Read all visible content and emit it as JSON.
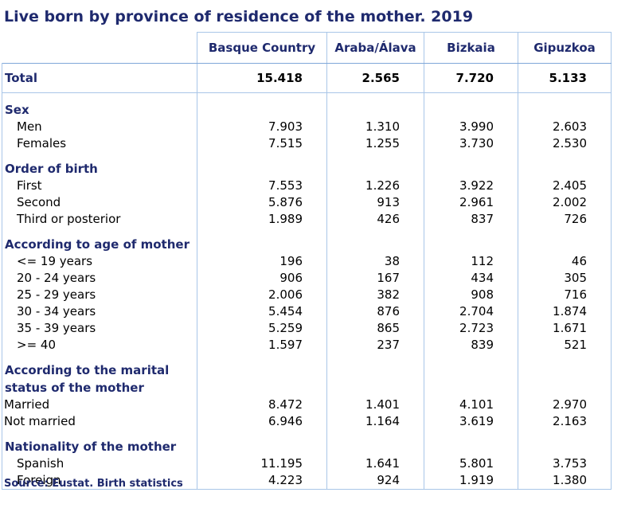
{
  "title": "Live born by province of residence of the mother. 2019",
  "columns": [
    "Basque Country",
    "Araba/Álava",
    "Bizkaia",
    "Gipuzkoa"
  ],
  "total": {
    "label": "Total",
    "values": [
      "15.418",
      "2.565",
      "7.720",
      "5.133"
    ]
  },
  "sections": [
    {
      "title": "Sex",
      "rows": [
        {
          "label": "Men",
          "values": [
            "7.903",
            "1.310",
            "3.990",
            "2.603"
          ]
        },
        {
          "label": "Females",
          "values": [
            "7.515",
            "1.255",
            "3.730",
            "2.530"
          ]
        }
      ]
    },
    {
      "title": "Order of birth",
      "rows": [
        {
          "label": "First",
          "values": [
            "7.553",
            "1.226",
            "3.922",
            "2.405"
          ]
        },
        {
          "label": "Second",
          "values": [
            "5.876",
            "913",
            "2.961",
            "2.002"
          ]
        },
        {
          "label": "Third or posterior",
          "values": [
            "1.989",
            "426",
            "837",
            "726"
          ]
        }
      ]
    },
    {
      "title": "According to age of mother",
      "rows": [
        {
          "label": "<= 19 years",
          "values": [
            "196",
            "38",
            "112",
            "46"
          ]
        },
        {
          "label": "20 - 24 years",
          "values": [
            "906",
            "167",
            "434",
            "305"
          ]
        },
        {
          "label": "25 - 29 years",
          "values": [
            "2.006",
            "382",
            "908",
            "716"
          ]
        },
        {
          "label": "30 - 34 years",
          "values": [
            "5.454",
            "876",
            "2.704",
            "1.874"
          ]
        },
        {
          "label": "35 - 39 years",
          "values": [
            "5.259",
            "865",
            "2.723",
            "1.671"
          ]
        },
        {
          "label": ">= 40",
          "values": [
            "1.597",
            "237",
            "839",
            "521"
          ]
        }
      ]
    },
    {
      "title_lines": [
        "According to the marital",
        "status of the mother"
      ],
      "rows": [
        {
          "label": "Married",
          "values": [
            "8.472",
            "1.401",
            "4.101",
            "2.970"
          ]
        },
        {
          "label": "Not married",
          "values": [
            "6.946",
            "1.164",
            "3.619",
            "2.163"
          ]
        }
      ]
    },
    {
      "title": "Nationality of the mother",
      "rows": [
        {
          "label": "Spanish",
          "values": [
            "11.195",
            "1.641",
            "5.801",
            "3.753"
          ]
        },
        {
          "label": "Foreign",
          "values": [
            "4.223",
            "924",
            "1.919",
            "1.380"
          ]
        }
      ]
    }
  ],
  "source": "Source: Eustat. Birth statistics"
}
